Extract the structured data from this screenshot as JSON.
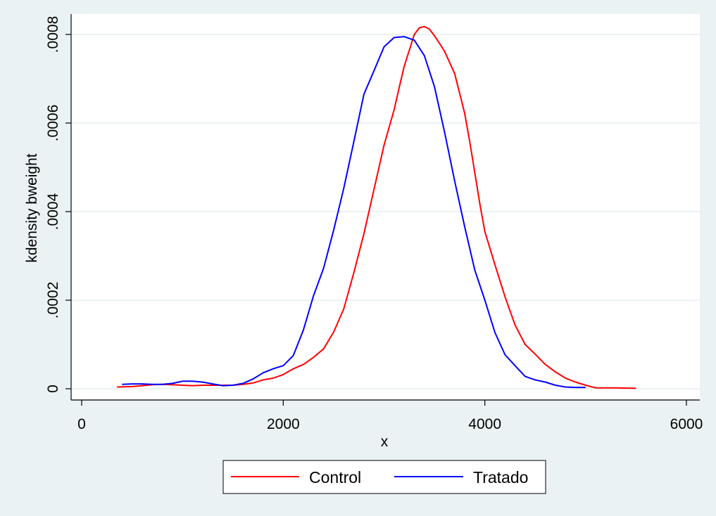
{
  "chart_data": {
    "type": "line",
    "xlabel": "x",
    "ylabel": "kdensity bweight",
    "xlim": [
      0,
      6000
    ],
    "ylim": [
      0,
      0.0008
    ],
    "x_ticks": [
      0,
      2000,
      4000,
      6000
    ],
    "x_tick_labels": [
      "0",
      "2000",
      "4000",
      "6000"
    ],
    "y_ticks": [
      0,
      0.0002,
      0.0004,
      0.0006,
      0.0008
    ],
    "y_tick_labels": [
      "0",
      ".0002",
      ".0004",
      ".0006",
      ".0008"
    ],
    "grid": true,
    "legend_position": "bottom",
    "series": [
      {
        "name": "Control",
        "color": "#ff0000",
        "points": [
          [
            350,
            4e-06
          ],
          [
            500,
            5e-06
          ],
          [
            600,
            7e-06
          ],
          [
            700,
            9e-06
          ],
          [
            800,
            1e-05
          ],
          [
            900,
            9e-06
          ],
          [
            1000,
            8e-06
          ],
          [
            1100,
            7e-06
          ],
          [
            1200,
            8e-06
          ],
          [
            1300,
            8e-06
          ],
          [
            1400,
            8e-06
          ],
          [
            1500,
            8e-06
          ],
          [
            1600,
            1e-05
          ],
          [
            1700,
            1.3e-05
          ],
          [
            1800,
            2e-05
          ],
          [
            1900,
            2.4e-05
          ],
          [
            2000,
            3.2e-05
          ],
          [
            2100,
            4.5e-05
          ],
          [
            2200,
            5.5e-05
          ],
          [
            2300,
            7.1e-05
          ],
          [
            2400,
            9e-05
          ],
          [
            2500,
            0.000128
          ],
          [
            2600,
            0.00018
          ],
          [
            2700,
            0.000262
          ],
          [
            2800,
            0.00035
          ],
          [
            2900,
            0.00045
          ],
          [
            3000,
            0.00055
          ],
          [
            3100,
            0.00063
          ],
          [
            3150,
            0.00068
          ],
          [
            3200,
            0.000728
          ],
          [
            3300,
            0.0008
          ],
          [
            3350,
            0.000815
          ],
          [
            3400,
            0.000818
          ],
          [
            3450,
            0.000812
          ],
          [
            3500,
            0.000797
          ],
          [
            3550,
            0.00078
          ],
          [
            3600,
            0.000762
          ],
          [
            3700,
            0.000712
          ],
          [
            3800,
            0.000622
          ],
          [
            3850,
            0.000558
          ],
          [
            3900,
            0.000488
          ],
          [
            3950,
            0.000418
          ],
          [
            4000,
            0.000355
          ],
          [
            4100,
            0.00028
          ],
          [
            4200,
            0.000208
          ],
          [
            4300,
            0.000144
          ],
          [
            4400,
            0.0001
          ],
          [
            4500,
            7.8e-05
          ],
          [
            4600,
            5.5e-05
          ],
          [
            4700,
            3.8e-05
          ],
          [
            4800,
            2.4e-05
          ],
          [
            4900,
            1.5e-05
          ],
          [
            5000,
            8e-06
          ],
          [
            5100,
            2e-06
          ],
          [
            5200,
            2e-06
          ],
          [
            5300,
            2e-06
          ],
          [
            5500,
            1e-06
          ]
        ]
      },
      {
        "name": "Tratado",
        "color": "#0000ff",
        "points": [
          [
            400,
            1e-05
          ],
          [
            500,
            1.1e-05
          ],
          [
            600,
            1.1e-05
          ],
          [
            700,
            1e-05
          ],
          [
            800,
            1e-05
          ],
          [
            900,
            1.2e-05
          ],
          [
            1000,
            1.7e-05
          ],
          [
            1100,
            1.7e-05
          ],
          [
            1200,
            1.5e-05
          ],
          [
            1300,
            1.1e-05
          ],
          [
            1400,
            7e-06
          ],
          [
            1500,
            8e-06
          ],
          [
            1600,
            1.2e-05
          ],
          [
            1700,
            2.2e-05
          ],
          [
            1800,
            3.6e-05
          ],
          [
            1900,
            4.5e-05
          ],
          [
            2000,
            5.2e-05
          ],
          [
            2100,
            7.5e-05
          ],
          [
            2200,
            0.000133
          ],
          [
            2300,
            0.00021
          ],
          [
            2400,
            0.000272
          ],
          [
            2500,
            0.000358
          ],
          [
            2600,
            0.000452
          ],
          [
            2700,
            0.000558
          ],
          [
            2800,
            0.000665
          ],
          [
            2900,
            0.000718
          ],
          [
            3000,
            0.000772
          ],
          [
            3100,
            0.000793
          ],
          [
            3200,
            0.000795
          ],
          [
            3300,
            0.000787
          ],
          [
            3400,
            0.000752
          ],
          [
            3500,
            0.000682
          ],
          [
            3600,
            0.00058
          ],
          [
            3700,
            0.00047
          ],
          [
            3800,
            0.000366
          ],
          [
            3900,
            0.000268
          ],
          [
            4000,
            0.0002
          ],
          [
            4100,
            0.000127
          ],
          [
            4200,
            7.7e-05
          ],
          [
            4300,
            5.2e-05
          ],
          [
            4400,
            2.8e-05
          ],
          [
            4500,
            2e-05
          ],
          [
            4600,
            1.5e-05
          ],
          [
            4700,
            8e-06
          ],
          [
            4800,
            4e-06
          ],
          [
            4900,
            3e-06
          ],
          [
            5000,
            3e-06
          ]
        ]
      }
    ]
  }
}
